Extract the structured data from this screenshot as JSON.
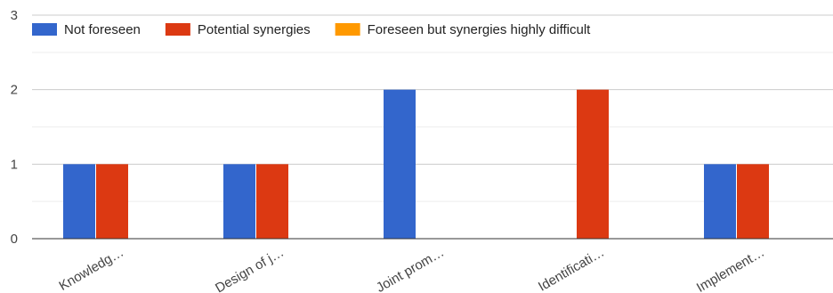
{
  "chart_data": {
    "type": "bar",
    "title": "",
    "xlabel": "",
    "ylabel": "",
    "categories": [
      "Knowledg…",
      "Design of j…",
      "Joint prom…",
      "Identificati…",
      "Implement…"
    ],
    "series": [
      {
        "name": "Not foreseen",
        "color": "#3366cc",
        "values": [
          1,
          1,
          2,
          0,
          1
        ]
      },
      {
        "name": "Potential synergies",
        "color": "#dc3912",
        "values": [
          1,
          1,
          0,
          2,
          1
        ]
      },
      {
        "name": "Foreseen but synergies highly difficult",
        "color": "#ff9900",
        "values": [
          0,
          0,
          0,
          0,
          0
        ]
      }
    ],
    "ylim": [
      0,
      3
    ],
    "yticks": [
      0,
      1,
      2,
      3
    ],
    "grid": true,
    "legend_position": "top-left",
    "x_tick_rotation": "diagonal"
  }
}
